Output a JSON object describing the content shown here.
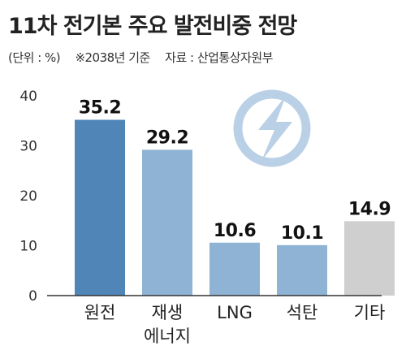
{
  "header": {
    "title": "11차 전기본 주요 발전비중 전망",
    "unit": "(단위 : %)",
    "note": "※2038년 기준",
    "source": "자료 : 산업통상자원부"
  },
  "logo": {
    "icon": "lightning-bolt-icon"
  },
  "colors": {
    "bar_dark": "#4f86b7",
    "bar_light": "#8fb3d4",
    "bar_gray": "#cfcfcf",
    "logo": "#b9d0e6",
    "axis": "#333333"
  },
  "chart_data": {
    "type": "bar",
    "categories": [
      [
        "원전"
      ],
      [
        "재생",
        "에너지"
      ],
      [
        "LNG"
      ],
      [
        "석탄"
      ],
      [
        "기타"
      ]
    ],
    "values": [
      35.2,
      29.2,
      10.6,
      10.1,
      14.9
    ],
    "value_labels": [
      "35.2",
      "29.2",
      "10.6",
      "10.1",
      "14.9"
    ],
    "bar_colors": [
      "#4f86b7",
      "#8fb3d4",
      "#8fb3d4",
      "#8fb3d4",
      "#cfcfcf"
    ],
    "yticks": [
      "0",
      "10",
      "20",
      "30",
      "40"
    ],
    "ylim": [
      0,
      40
    ],
    "title": "11차 전기본 주요 발전비중 전망",
    "xlabel": "",
    "ylabel": "",
    "grid": false,
    "legend": "none"
  }
}
